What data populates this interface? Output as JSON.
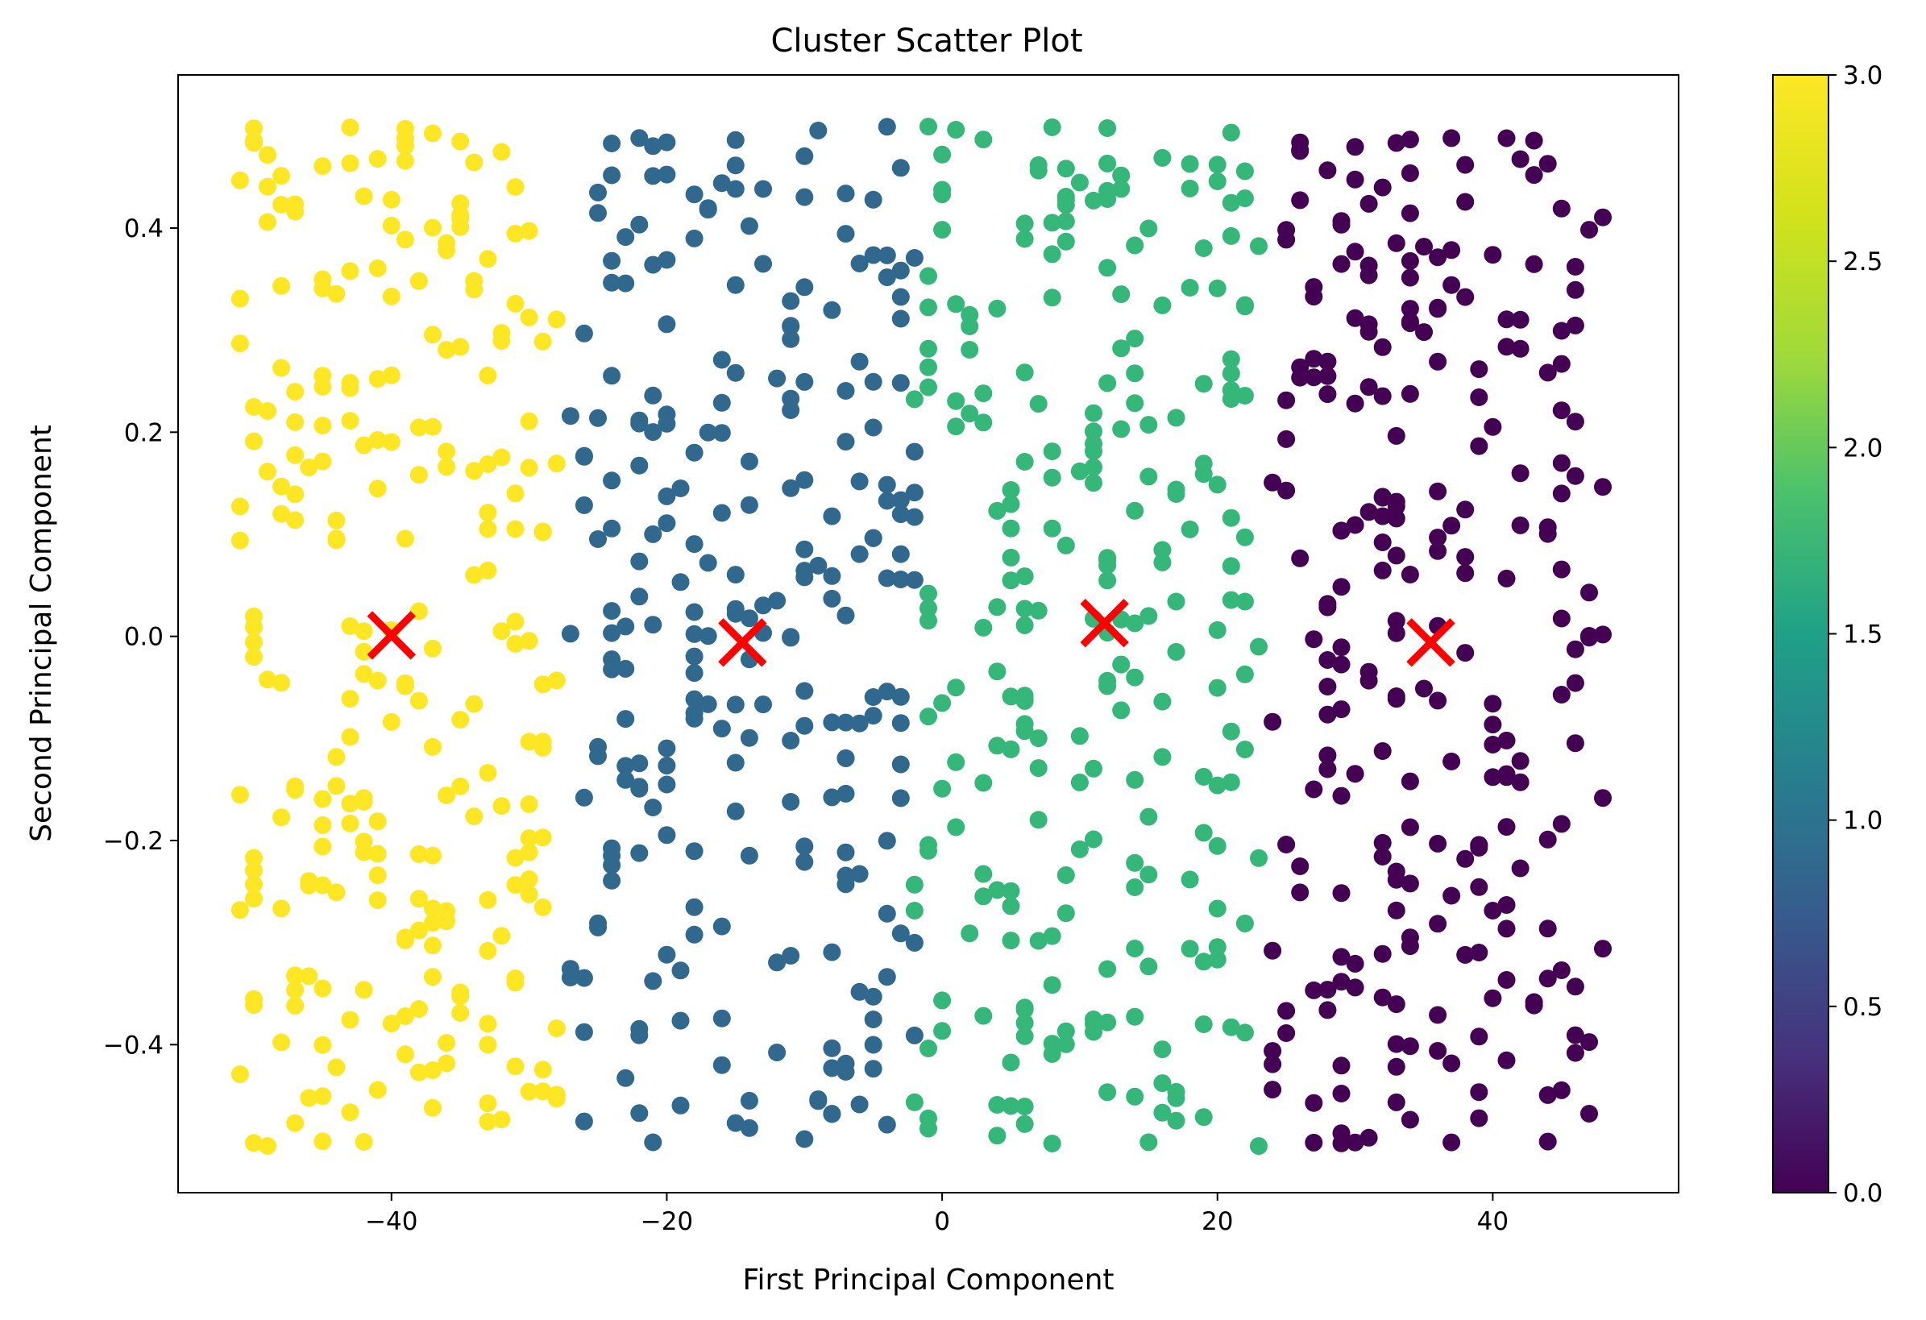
{
  "chart_data": {
    "type": "scatter",
    "title": "Cluster Scatter Plot",
    "xlabel": "First Principal Component",
    "ylabel": "Second Principal Component",
    "xlim": [
      -55.5,
      53.5
    ],
    "ylim": [
      -0.545,
      0.55
    ],
    "xticks": [
      -40,
      -20,
      0,
      20,
      40
    ],
    "xtick_labels": [
      "−40",
      "−20",
      "0",
      "20",
      "40"
    ],
    "yticks": [
      -0.4,
      -0.2,
      0.0,
      0.2,
      0.4
    ],
    "ytick_labels": [
      "−0.4",
      "−0.2",
      "0.0",
      "0.2",
      "0.4"
    ],
    "grid": false,
    "colorbar": {
      "colormap": "viridis",
      "range": [
        0.0,
        3.0
      ],
      "ticks": [
        0.0,
        0.5,
        1.0,
        1.5,
        2.0,
        2.5,
        3.0
      ],
      "tick_labels": [
        "0.0",
        "0.5",
        "1.0",
        "1.5",
        "2.0",
        "2.5",
        "3.0"
      ]
    },
    "clusters": [
      {
        "label": 0,
        "color": "#440154",
        "x_range": [
          24,
          48
        ],
        "y_range": [
          -0.5,
          0.5
        ],
        "points": 250
      },
      {
        "label": 1,
        "color": "#31688e",
        "x_range": [
          -27,
          -2
        ],
        "y_range": [
          -0.5,
          0.5
        ],
        "points": 250
      },
      {
        "label": 2,
        "color": "#35b779",
        "x_range": [
          -2,
          23
        ],
        "y_range": [
          -0.5,
          0.5
        ],
        "points": 250
      },
      {
        "label": 3,
        "color": "#fde725",
        "x_range": [
          -51,
          -28
        ],
        "y_range": [
          -0.5,
          0.5
        ],
        "points": 250
      }
    ],
    "centroids": {
      "color": "#ff0000",
      "marker": "x",
      "points": [
        {
          "x": -40.0,
          "y": 0.001
        },
        {
          "x": -14.5,
          "y": -0.006
        },
        {
          "x": 11.8,
          "y": 0.013
        },
        {
          "x": 35.5,
          "y": -0.006
        }
      ]
    }
  }
}
